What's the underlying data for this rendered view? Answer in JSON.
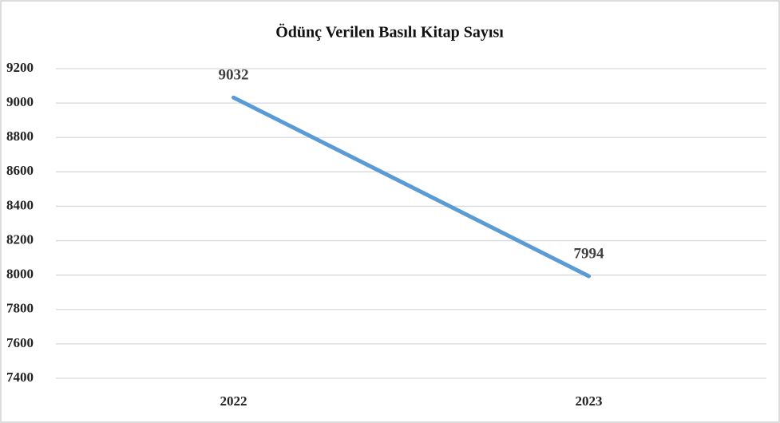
{
  "chart_data": {
    "type": "line",
    "title": "Ödünç Verilen Basılı Kitap Sayısı",
    "categories": [
      "2022",
      "2023"
    ],
    "series": [
      {
        "name": "Ödünç Verilen Basılı Kitap Sayısı",
        "color": "#5b9bd5",
        "values": [
          9032,
          7994
        ]
      }
    ],
    "ylim": [
      7400,
      9200
    ],
    "yticks": [
      7400,
      7600,
      7800,
      8000,
      8200,
      8400,
      8600,
      8800,
      9000,
      9200
    ],
    "grid": true
  }
}
